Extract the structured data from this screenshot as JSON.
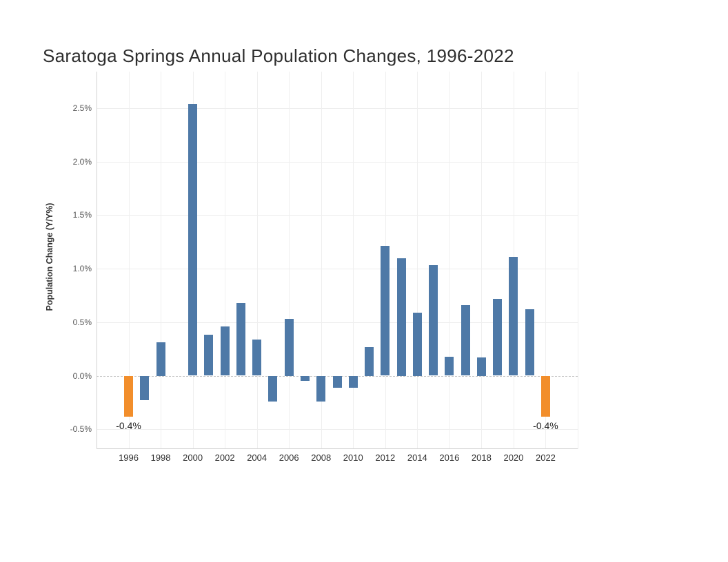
{
  "chart": {
    "title": "Saratoga Springs Annual Population Changes, 1996-2022",
    "y_axis_title": "Population Change (Y/Y%)"
  },
  "chart_data": {
    "type": "bar",
    "title": "Saratoga Springs Annual Population Changes, 1996-2022",
    "xlabel": "",
    "ylabel": "Population Change (Y/Y%)",
    "unit": "%",
    "x": [
      1996,
      1997,
      1998,
      1999,
      2000,
      2001,
      2002,
      2003,
      2004,
      2005,
      2006,
      2007,
      2008,
      2009,
      2010,
      2011,
      2012,
      2013,
      2014,
      2015,
      2016,
      2017,
      2018,
      2019,
      2020,
      2021,
      2022
    ],
    "values": [
      -0.38,
      -0.23,
      0.31,
      0.0,
      2.54,
      0.38,
      0.46,
      0.68,
      0.34,
      -0.24,
      0.53,
      -0.05,
      -0.24,
      -0.11,
      -0.11,
      0.27,
      1.21,
      1.1,
      0.59,
      1.03,
      0.18,
      0.66,
      0.17,
      0.72,
      1.11,
      0.62,
      -0.38
    ],
    "bar_color_default": "#4E79A7",
    "bar_color_highlight": "#F28E2B",
    "highlighted_years": [
      1996,
      2022
    ],
    "annotations": [
      {
        "year": 1996,
        "label": "-0.4%"
      },
      {
        "year": 2022,
        "label": "-0.4%"
      }
    ],
    "y_ticks": [
      {
        "value": 2.5,
        "label": "2.5%"
      },
      {
        "value": 2.0,
        "label": "2.0%"
      },
      {
        "value": 1.5,
        "label": "1.5%"
      },
      {
        "value": 1.0,
        "label": "1.0%"
      },
      {
        "value": 0.5,
        "label": "0.5%"
      },
      {
        "value": 0.0,
        "label": "0.0%"
      },
      {
        "value": -0.5,
        "label": "-0.5%"
      }
    ],
    "x_tick_years": [
      1996,
      1998,
      2000,
      2002,
      2004,
      2006,
      2008,
      2010,
      2012,
      2014,
      2016,
      2018,
      2020,
      2022
    ],
    "vertical_gridline_years": [
      1996,
      1998,
      2000,
      2002,
      2004,
      2006,
      2008,
      2010,
      2012,
      2014,
      2016,
      2018,
      2020,
      2022,
      2024
    ],
    "xlim": [
      1994,
      2024
    ],
    "ylim": [
      -0.685,
      2.84
    ],
    "grid": true,
    "legend_position": "none",
    "zero_line_style": "dashed"
  }
}
